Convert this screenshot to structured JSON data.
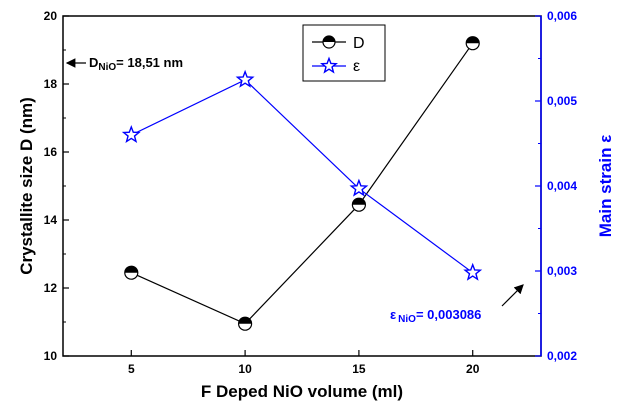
{
  "chart_data": {
    "type": "line",
    "x": [
      5,
      10,
      15,
      20
    ],
    "xlim": [
      2,
      23
    ],
    "xticks": [
      "5",
      "10",
      "15",
      "20"
    ],
    "xlabel": "F Deped NiO volume (ml)",
    "series": [
      {
        "name": "D",
        "axis": "left",
        "color": "#000000",
        "marker": "half-filled-circle",
        "values": [
          12.45,
          10.95,
          14.45,
          19.2
        ]
      },
      {
        "name": "ε",
        "axis": "right",
        "color": "#0000ff",
        "marker": "open-star",
        "values": [
          0.0046,
          0.00525,
          0.00397,
          0.00298
        ]
      }
    ],
    "y_left": {
      "label": "Crystallite size D (nm)",
      "ylim": [
        10,
        20
      ],
      "ticks": [
        "10",
        "12",
        "14",
        "16",
        "18",
        "20"
      ],
      "color": "#000000"
    },
    "y_right": {
      "label": "Main strain ε",
      "ylim": [
        0.002,
        0.006
      ],
      "ticks": [
        "0,002",
        "0,003",
        "0,004",
        "0,005",
        "0,006"
      ],
      "color": "#0000ff"
    },
    "annotations": {
      "d_nio": {
        "main": "D",
        "sub": "NiO",
        "value": "= 18,51 nm"
      },
      "eps_nio": {
        "main": "ε",
        "sub": "NiO",
        "value": "= 0,003086"
      }
    },
    "legend": {
      "position": "top-center",
      "entries": [
        "D",
        "ε"
      ]
    },
    "grid": false
  }
}
